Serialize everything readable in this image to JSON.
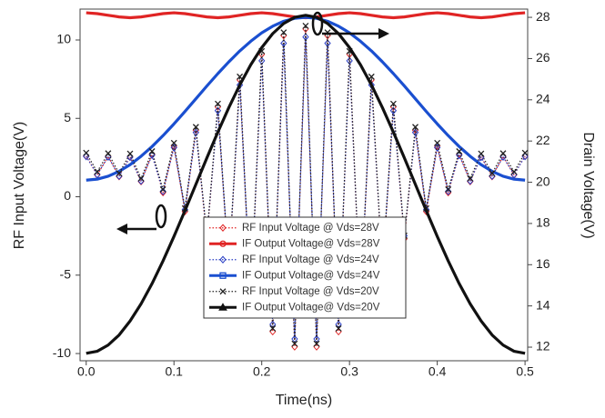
{
  "chart_data": {
    "type": "line",
    "xlabel": "Time(ns)",
    "ylabel": "RF Input Voltage(V)",
    "y2label": "Drain Voltage(V)",
    "xlim": [
      -0.007,
      0.503
    ],
    "ylim": [
      -10.46,
      11.97
    ],
    "y2lim": [
      11.34,
      28.4
    ],
    "xticks": [
      {
        "value": 0,
        "label": "0.0"
      },
      0.1,
      0.2,
      0.3,
      0.4,
      0.5
    ],
    "yticks": [
      -10,
      -5,
      0,
      5,
      10
    ],
    "y2ticks": [
      12,
      14,
      16,
      18,
      20,
      22,
      24,
      26,
      28
    ],
    "legend_loc": "lower center",
    "x": [
      0,
      0.0125,
      0.025,
      0.0375,
      0.05,
      0.0625,
      0.075,
      0.0875,
      0.1,
      0.1125,
      0.125,
      0.1375,
      0.15,
      0.1625,
      0.175,
      0.1875,
      0.2,
      0.2125,
      0.225,
      0.2375,
      0.25,
      0.2625,
      0.275,
      0.2875,
      0.3,
      0.3125,
      0.325,
      0.3375,
      0.35,
      0.3625,
      0.375,
      0.3875,
      0.4,
      0.4125,
      0.425,
      0.4375,
      0.45,
      0.4625,
      0.475,
      0.4875,
      0.5
    ],
    "series": [
      {
        "name": "RF Input Voltage @ Vds=28V",
        "color": "#e02424",
        "dash": "dotted",
        "marker": "diamond",
        "values": [
          2.6,
          1.39,
          2.57,
          1.29,
          2.55,
          0.97,
          2.7,
          0.27,
          3.23,
          -0.94,
          4.25,
          -2.68,
          5.73,
          -4.76,
          7.46,
          -6.87,
          9.09,
          -8.6,
          10.28,
          -9.57,
          10.7,
          -9.57,
          10.28,
          -8.6,
          9.09,
          -6.87,
          7.46,
          -4.76,
          5.73,
          -2.68,
          4.25,
          -0.94,
          3.23,
          0.27,
          2.7,
          0.97,
          2.55,
          1.29,
          2.57,
          1.39,
          2.6
        ]
      },
      {
        "name": "IF Output Voltage@ Vds=28V",
        "color": "#e02424",
        "dash": "solid",
        "marker": "circle",
        "axis": "y2",
        "values": [
          28.22,
          28.18,
          28.1,
          28.02,
          27.98,
          28.02,
          28.1,
          28.18,
          28.22,
          28.18,
          28.1,
          28.02,
          27.98,
          28.02,
          28.1,
          28.18,
          28.22,
          28.18,
          28.1,
          28.02,
          27.98,
          28.02,
          28.1,
          28.18,
          28.22,
          28.18,
          28.1,
          28.02,
          27.98,
          28.02,
          28.1,
          28.18,
          28.22,
          28.18,
          28.1,
          28.02,
          27.98,
          28.02,
          28.1,
          28.18,
          28.22
        ]
      },
      {
        "name": "RF Input Voltage @ Vds=24V",
        "color": "#2a3fc4",
        "dash": "dotted",
        "marker": "diamond",
        "values": [
          2.57,
          1.42,
          2.54,
          1.32,
          2.52,
          1.01,
          2.65,
          0.34,
          3.14,
          -0.82,
          4.1,
          -2.49,
          5.49,
          -4.48,
          7.13,
          -6.49,
          8.67,
          -8.14,
          9.79,
          -9.07,
          10.19,
          -9.07,
          9.79,
          -8.14,
          8.67,
          -6.49,
          7.13,
          -4.48,
          5.49,
          -2.49,
          4.1,
          -0.82,
          3.14,
          0.34,
          2.65,
          1.01,
          2.52,
          1.32,
          2.54,
          1.42,
          2.57
        ]
      },
      {
        "name": "IF Output Voltage@ Vds=24V",
        "color": "#1a4fd0",
        "dash": "solid",
        "marker": "square",
        "axis": "y2",
        "values": [
          20.1,
          20.15,
          20.29,
          20.53,
          20.85,
          21.26,
          21.73,
          22.26,
          22.83,
          23.43,
          24.05,
          24.67,
          25.27,
          25.84,
          26.37,
          26.84,
          27.25,
          27.57,
          27.81,
          27.95,
          28,
          27.95,
          27.81,
          27.57,
          27.25,
          26.84,
          26.37,
          25.84,
          25.27,
          24.67,
          24.05,
          23.43,
          22.83,
          22.26,
          21.73,
          21.26,
          20.85,
          20.53,
          20.29,
          20.15,
          20.1
        ]
      },
      {
        "name": "RF Input Voltage @ Vds=20V",
        "color": "#222222",
        "dash": "dotted",
        "marker": "x",
        "values": [
          2.8,
          1.59,
          2.77,
          1.49,
          2.75,
          1.17,
          2.9,
          0.47,
          3.43,
          -0.74,
          4.45,
          -2.48,
          5.93,
          -4.56,
          7.66,
          -6.67,
          9.29,
          -8.4,
          10.48,
          -9.37,
          10.9,
          -9.37,
          10.48,
          -8.4,
          9.29,
          -6.67,
          7.66,
          -4.56,
          5.93,
          -2.48,
          4.45,
          -0.74,
          3.43,
          0.47,
          2.9,
          1.17,
          2.75,
          1.49,
          2.77,
          1.59,
          2.8
        ]
      },
      {
        "name": "IF Output Voltage@ Vds=20V",
        "color": "#111111",
        "dash": "solid",
        "marker": "triangle",
        "axis": "y2",
        "values": [
          11.7,
          11.8,
          12.1,
          12.59,
          13.27,
          14.1,
          15.08,
          16.18,
          17.37,
          18.62,
          19.9,
          21.18,
          22.43,
          23.62,
          24.72,
          25.7,
          26.53,
          27.21,
          27.7,
          28,
          28.1,
          28,
          27.7,
          27.21,
          26.53,
          25.7,
          24.72,
          23.62,
          22.43,
          21.18,
          19.9,
          18.62,
          17.37,
          16.18,
          15.08,
          14.1,
          13.27,
          12.59,
          12.1,
          11.8,
          11.7
        ]
      }
    ]
  }
}
